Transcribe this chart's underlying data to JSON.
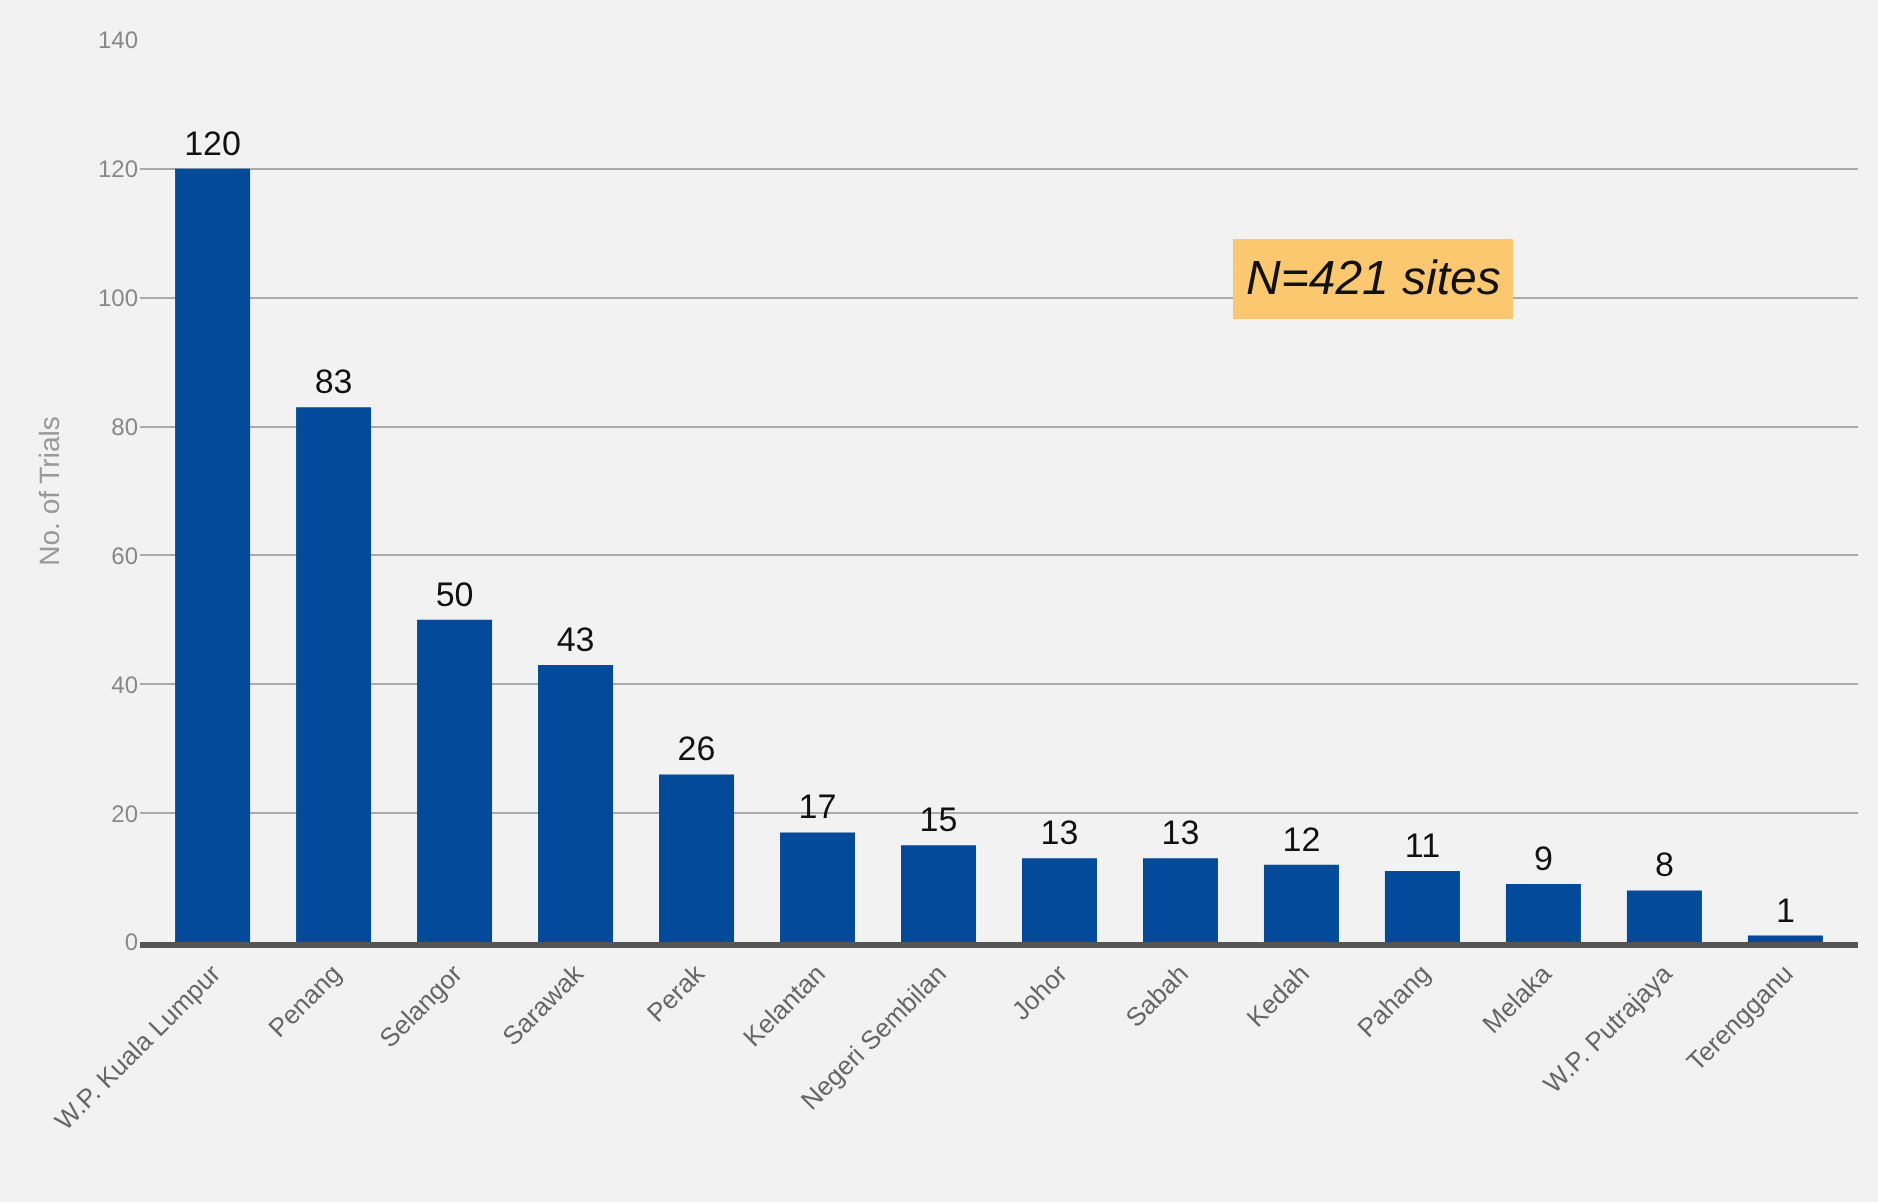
{
  "chart_data": {
    "type": "bar",
    "ylabel": "No. of Trials",
    "categories": [
      "W.P. Kuala Lumpur",
      "Penang",
      "Selangor",
      "Sarawak",
      "Perak",
      "Kelantan",
      "Negeri Sembilan",
      "Johor",
      "Sabah",
      "Kedah",
      "Pahang",
      "Melaka",
      "W.P. Putrajaya",
      "Terengganu"
    ],
    "values": [
      120,
      83,
      50,
      43,
      26,
      17,
      15,
      13,
      13,
      12,
      11,
      9,
      8,
      1
    ],
    "color": "#034a9a",
    "ylim": [
      0,
      140
    ],
    "yticks": [
      0,
      20,
      40,
      60,
      80,
      100,
      120,
      140
    ],
    "grid": "y",
    "data_labels": true,
    "annotations": [
      "N=421 sites"
    ]
  }
}
